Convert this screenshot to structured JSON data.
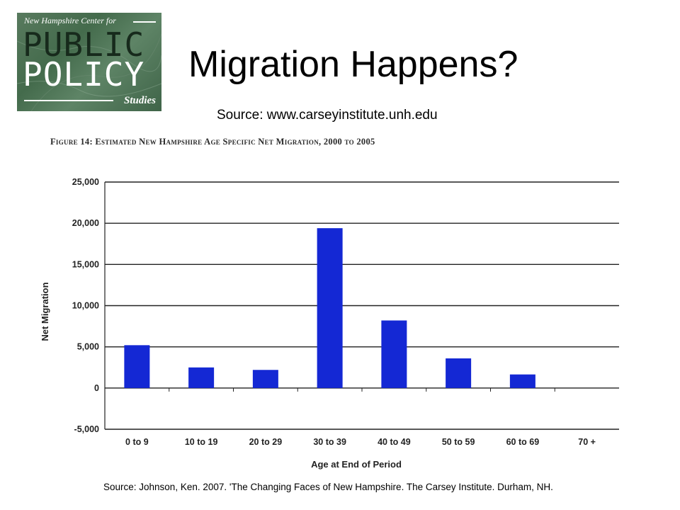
{
  "logo": {
    "top_text": "New Hampshire Center for",
    "line1": "PUBLIC",
    "line2": "POLICY",
    "bottom_text": "Studies",
    "bg_color": "#4a6e52"
  },
  "slide": {
    "title": "Migration Happens?",
    "source_url": "Source: www.carseyinstitute.unh.edu",
    "footnote": "Source: Johnson, Ken. 2007. 'The Changing Faces of New Hampshire.  The Carsey Institute. Durham, NH."
  },
  "chart_data": {
    "type": "bar",
    "title": "Figure 14: Estimated New Hampshire Age Specific Net Migration, 2000 to 2005",
    "xlabel": "Age at End of Period",
    "ylabel": "Net Migration",
    "categories": [
      "0 to 9",
      "10 to 19",
      "20 to 29",
      "30 to 39",
      "40 to 49",
      "50 to 59",
      "60 to 69",
      "70 +"
    ],
    "values": [
      5200,
      2500,
      2200,
      19400,
      8200,
      3600,
      1650,
      0
    ],
    "ylim": [
      -5000,
      25000
    ],
    "yticks": [
      25000,
      20000,
      15000,
      10000,
      5000,
      0,
      -5000
    ],
    "ytick_labels": [
      "25,000",
      "20,000",
      "15,000",
      "10,000",
      "5,000",
      "0",
      "-5,000"
    ],
    "grid": true,
    "bar_color": "#1428d4"
  }
}
